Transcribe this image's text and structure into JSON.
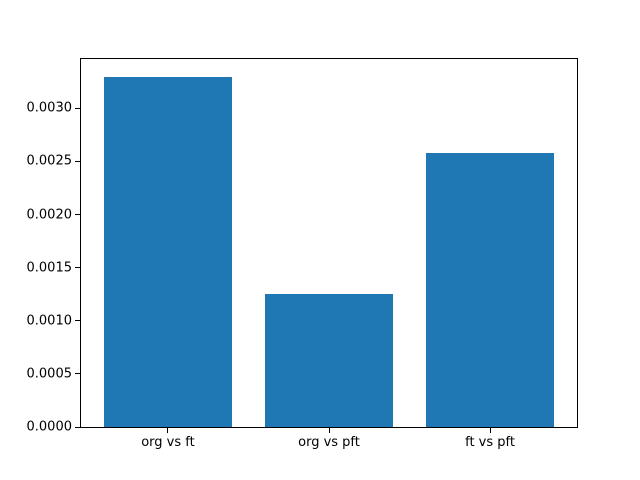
{
  "chart_data": {
    "type": "bar",
    "title": "",
    "xlabel": "",
    "ylabel": "",
    "categories": [
      "org vs ft",
      "org vs pft",
      "ft vs pft"
    ],
    "values": [
      0.0033,
      0.00125,
      0.00258
    ],
    "bar_color": "#1f77b4",
    "ylim": [
      0,
      0.003465
    ],
    "xlim": [
      -0.54,
      2.54
    ],
    "bar_width": 0.8,
    "grid": false,
    "legend": false,
    "yticks": [
      {
        "value": 0.0,
        "label": "0.0000"
      },
      {
        "value": 0.0005,
        "label": "0.0005"
      },
      {
        "value": 0.001,
        "label": "0.0010"
      },
      {
        "value": 0.0015,
        "label": "0.0015"
      },
      {
        "value": 0.002,
        "label": "0.0020"
      },
      {
        "value": 0.0025,
        "label": "0.0025"
      },
      {
        "value": 0.003,
        "label": "0.0030"
      }
    ]
  },
  "colors": {
    "frame": "#000000",
    "text": "#000000",
    "background": "#ffffff"
  }
}
